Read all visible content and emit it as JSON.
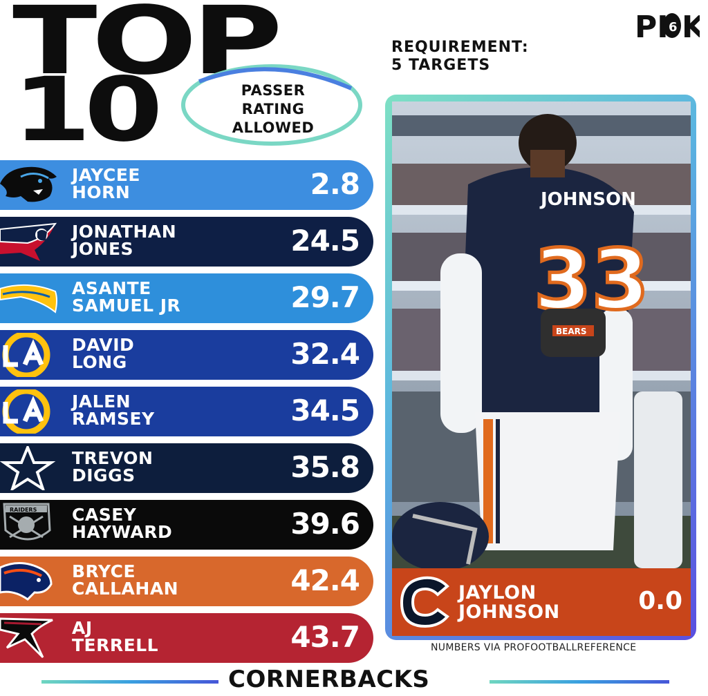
{
  "header": {
    "title_line1": "TOP",
    "title_line2": "10",
    "stat_label": [
      "PASSER",
      "RATING",
      "ALLOWED"
    ],
    "brand": "PICK 6",
    "requirement_line1": "REQUIREMENT:",
    "requirement_line2": "5 TARGETS"
  },
  "rankings": [
    {
      "first": "JAYCEE",
      "last": "HORN",
      "value": "2.8",
      "team_icon": "panthers-logo",
      "color": "#3d8ee0"
    },
    {
      "first": "JONATHAN",
      "last": "JONES",
      "value": "24.5",
      "team_icon": "patriots-logo",
      "color": "#0e1f45"
    },
    {
      "first": "ASANTE",
      "last": "SAMUEL JR",
      "value": "29.7",
      "team_icon": "chargers-logo",
      "color": "#2e8fdb"
    },
    {
      "first": "DAVID",
      "last": "LONG",
      "value": "32.4",
      "team_icon": "rams-logo",
      "color": "#1a3d9e"
    },
    {
      "first": "JALEN",
      "last": "RAMSEY",
      "value": "34.5",
      "team_icon": "rams-logo",
      "color": "#1a3d9e"
    },
    {
      "first": "TREVON",
      "last": "DIGGS",
      "value": "35.8",
      "team_icon": "cowboys-logo",
      "color": "#0d1e3d"
    },
    {
      "first": "CASEY",
      "last": "HAYWARD",
      "value": "39.6",
      "team_icon": "raiders-logo",
      "color": "#0a0a0a"
    },
    {
      "first": "BRYCE",
      "last": "CALLAHAN",
      "value": "42.4",
      "team_icon": "broncos-logo",
      "color": "#d8682c"
    },
    {
      "first": "AJ",
      "last": "TERRELL",
      "value": "43.7",
      "team_icon": "falcons-logo",
      "color": "#b52432"
    }
  ],
  "featured": {
    "first": "JAYLON",
    "last": "JOHNSON",
    "value": "0.0",
    "team_icon": "bears-logo",
    "color": "#c8451a",
    "jersey_name": "JOHNSON",
    "jersey_number": "33",
    "belt_text": "BEARS"
  },
  "source": "NUMBERS VIA PROFOOTBALLREFERENCE",
  "footer": "CORNERBACKS"
}
